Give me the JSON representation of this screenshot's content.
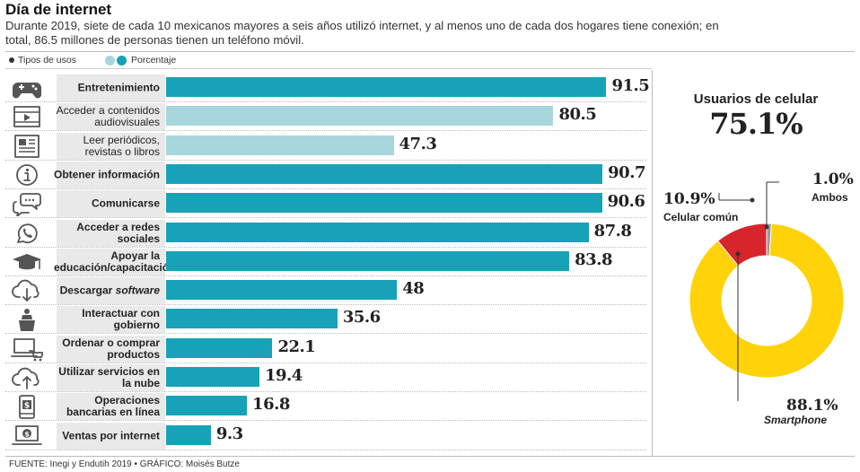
{
  "header": {
    "title": "Día de internet",
    "subtitle": "Durante 2019, siete de cada 10 mexicanos mayores a seis años utilizó internet, y al menos uno de cada dos hogares tiene conexión; en total, 86.5 millones de personas tienen un teléfono móvil."
  },
  "legend": {
    "uses": "Tipos de usos",
    "percent": "Porcentaje"
  },
  "colors": {
    "bar_dark": "#17a2b8",
    "bar_light": "#a7d6dc",
    "smartphone": "#ffd20a",
    "celular_comun": "#d7262b",
    "ambos": "#9a9a9a"
  },
  "chart_data": [
    {
      "type": "bar",
      "orientation": "horizontal",
      "ylim": [
        0,
        100
      ],
      "categories": [
        {
          "label": "Entretenimiento",
          "value": 91.5,
          "value_label": "91.5",
          "icon": "gamepad-icon",
          "shade": "dark",
          "bold": true
        },
        {
          "label": "Acceder a contenidos audiovisuales",
          "value": 80.5,
          "value_label": "80.5",
          "icon": "video-player-icon",
          "shade": "light",
          "bold": false
        },
        {
          "label": "Leer periódicos, revistas o libros",
          "value": 47.3,
          "value_label": "47.3",
          "icon": "newspaper-icon",
          "shade": "light",
          "bold": false
        },
        {
          "label": "Obtener información",
          "value": 90.7,
          "value_label": "90.7",
          "icon": "info-icon",
          "shade": "dark",
          "bold": true
        },
        {
          "label": "Comunicarse",
          "value": 90.6,
          "value_label": "90.6",
          "icon": "chat-bubbles-icon",
          "shade": "dark",
          "bold": true
        },
        {
          "label": "Acceder a redes sociales",
          "value": 87.8,
          "value_label": "87.8",
          "icon": "whatsapp-icon",
          "shade": "dark",
          "bold": true
        },
        {
          "label": "Apoyar la educación/capacitación",
          "value": 83.8,
          "value_label": "83.8",
          "icon": "graduation-cap-icon",
          "shade": "dark",
          "bold": true
        },
        {
          "label": "Descargar software",
          "value": 48,
          "value_label": "48",
          "icon": "cloud-download-icon",
          "shade": "dark",
          "bold": true
        },
        {
          "label": "Interactuar con gobierno",
          "value": 35.6,
          "value_label": "35.6",
          "icon": "podium-speaker-icon",
          "shade": "dark",
          "bold": true
        },
        {
          "label": "Ordenar o comprar productos",
          "value": 22.1,
          "value_label": "22.1",
          "icon": "laptop-cart-icon",
          "shade": "dark",
          "bold": true
        },
        {
          "label": "Utilizar servicios en la nube",
          "value": 19.4,
          "value_label": "19.4",
          "icon": "cloud-upload-icon",
          "shade": "dark",
          "bold": true
        },
        {
          "label": "Operaciones bancarias en línea",
          "value": 16.8,
          "value_label": "16.8",
          "icon": "mobile-dollar-icon",
          "shade": "dark",
          "bold": true
        },
        {
          "label": "Ventas por internet",
          "value": 9.3,
          "value_label": "9.3",
          "icon": "laptop-dollar-icon",
          "shade": "dark",
          "bold": true
        }
      ]
    },
    {
      "type": "pie",
      "donut": true,
      "title": "Usuarios de celular",
      "total_label": "75.1%",
      "slices": [
        {
          "name": "Smartphone",
          "value": 88.1,
          "label": "88.1%",
          "color": "#ffd20a"
        },
        {
          "name": "Celular común",
          "value": 10.9,
          "label": "10.9%",
          "color": "#d7262b"
        },
        {
          "name": "Ambos",
          "value": 1.0,
          "label": "1.0%",
          "color": "#9a9a9a"
        }
      ]
    }
  ],
  "footer": {
    "source": "FUENTE: Inegi y Endutih 2019 • GRÁFICO: Moisés Butze"
  }
}
